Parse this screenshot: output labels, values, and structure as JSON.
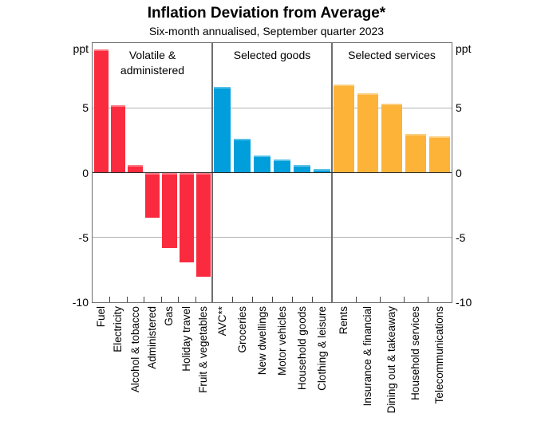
{
  "title": "Inflation Deviation from Average*",
  "subtitle": "Six-month annualised, September quarter 2023",
  "axis": {
    "unit_left": "ppt",
    "unit_right": "ppt"
  },
  "chart_data": {
    "type": "bar",
    "title": "Inflation Deviation from Average*",
    "subtitle": "Six-month annualised, September quarter 2023",
    "ylabel": "ppt",
    "ylim": [
      -10,
      10
    ],
    "yticks": [
      5,
      0,
      -5,
      -10
    ],
    "gridlines": [
      5,
      -5
    ],
    "legend_position": "none",
    "grid": "horizontal",
    "panels": [
      {
        "title": "Volatile & administered",
        "title_lines": [
          "Volatile &",
          "administered"
        ],
        "color": "#FB2B3F",
        "categories": [
          "Fuel",
          "Electricity",
          "Alcohol & tobacco",
          "Administered",
          "Gas",
          "Holiday travel",
          "Fruit & vegetables"
        ],
        "values": [
          9.5,
          5.2,
          0.6,
          -3.5,
          -5.8,
          -6.9,
          -8.0
        ]
      },
      {
        "title": "Selected goods",
        "title_lines": [
          "Selected goods"
        ],
        "color": "#009FDB",
        "categories": [
          "AVC**",
          "Groceries",
          "New dwellings",
          "Motor vehicles",
          "Household goods",
          "Clothing & leisure"
        ],
        "values": [
          6.6,
          2.6,
          1.3,
          1.0,
          0.6,
          0.3
        ]
      },
      {
        "title": "Selected services",
        "title_lines": [
          "Selected services"
        ],
        "color": "#FCB338",
        "categories": [
          "Rents",
          "Insurance & financial",
          "Dining out & takeaway",
          "Household services",
          "Telecommunications"
        ],
        "values": [
          6.8,
          6.1,
          5.3,
          3.0,
          2.8
        ]
      }
    ]
  }
}
